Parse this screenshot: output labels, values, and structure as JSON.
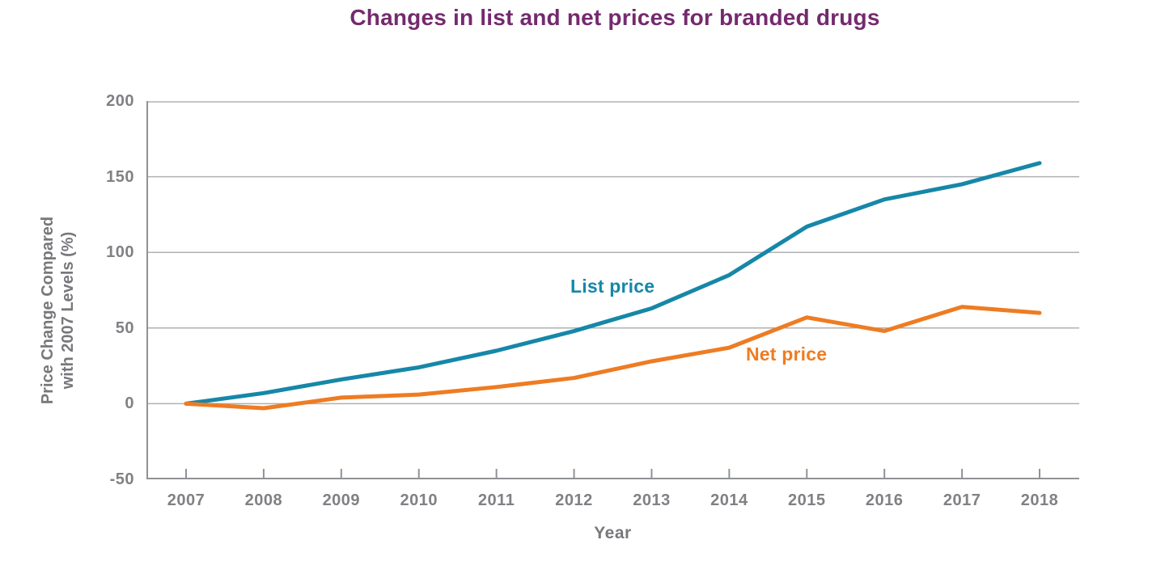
{
  "title": "Changes in list and net prices for branded drugs",
  "colors": {
    "title": "#742a6e",
    "axis_text": "#77787b",
    "tick_text": "#808184",
    "gridline": "#aeb0b3",
    "axis_line": "#909295",
    "list_price": "#1687a8",
    "net_price": "#ee7c23"
  },
  "chart_data": {
    "type": "line",
    "title": "Changes in list and net prices for branded drugs",
    "x": [
      2007,
      2008,
      2009,
      2010,
      2011,
      2012,
      2013,
      2014,
      2015,
      2016,
      2017,
      2018
    ],
    "series": [
      {
        "name": "List price",
        "color": "#1687a8",
        "values": [
          0,
          7,
          16,
          24,
          35,
          48,
          63,
          85,
          117,
          135,
          145,
          159
        ]
      },
      {
        "name": "Net price",
        "color": "#ee7c23",
        "values": [
          0,
          -3,
          4,
          6,
          11,
          17,
          28,
          37,
          57,
          48,
          64,
          60
        ]
      }
    ],
    "xlabel": "Year",
    "ylabel_line1": "Price Change Compared",
    "ylabel_line2": "with 2007 Levels (%)",
    "yticks": [
      200,
      150,
      100,
      50,
      0,
      -50
    ],
    "ylim": [
      -50,
      200
    ],
    "grid": true,
    "legend": "inline-labels-near-lines"
  }
}
